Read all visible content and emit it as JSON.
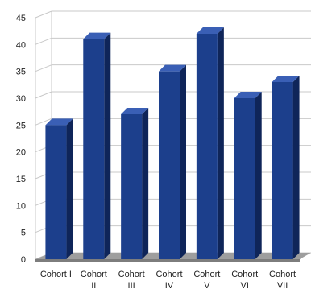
{
  "chart_data": {
    "type": "bar",
    "style": "3d",
    "categories": [
      [
        "Cohort I"
      ],
      [
        "Cohort",
        "II"
      ],
      [
        "Cohort",
        "III"
      ],
      [
        "Cohort",
        "IV"
      ],
      [
        "Cohort",
        "V"
      ],
      [
        "Cohort",
        "VI"
      ],
      [
        "Cohort",
        "VII"
      ]
    ],
    "series": [
      {
        "values": [
          25,
          41,
          27,
          35,
          42,
          30,
          33
        ],
        "color": "#1c3f8c"
      }
    ],
    "y_ticks": [
      "0",
      "5",
      "10",
      "15",
      "20",
      "25",
      "30",
      "35",
      "40",
      "45"
    ],
    "ylim": [
      0,
      45
    ],
    "y_step": 5,
    "grid": true,
    "legend": "none",
    "title": "",
    "xlabel": "",
    "ylabel": ""
  },
  "colors": {
    "bar_front": "#1c3f8c",
    "bar_side": "#0f2559",
    "bar_top": "#3a5fb5",
    "grid": "#c9c9c9",
    "floor": "#9e9e9e",
    "axis_text": "#222222"
  }
}
